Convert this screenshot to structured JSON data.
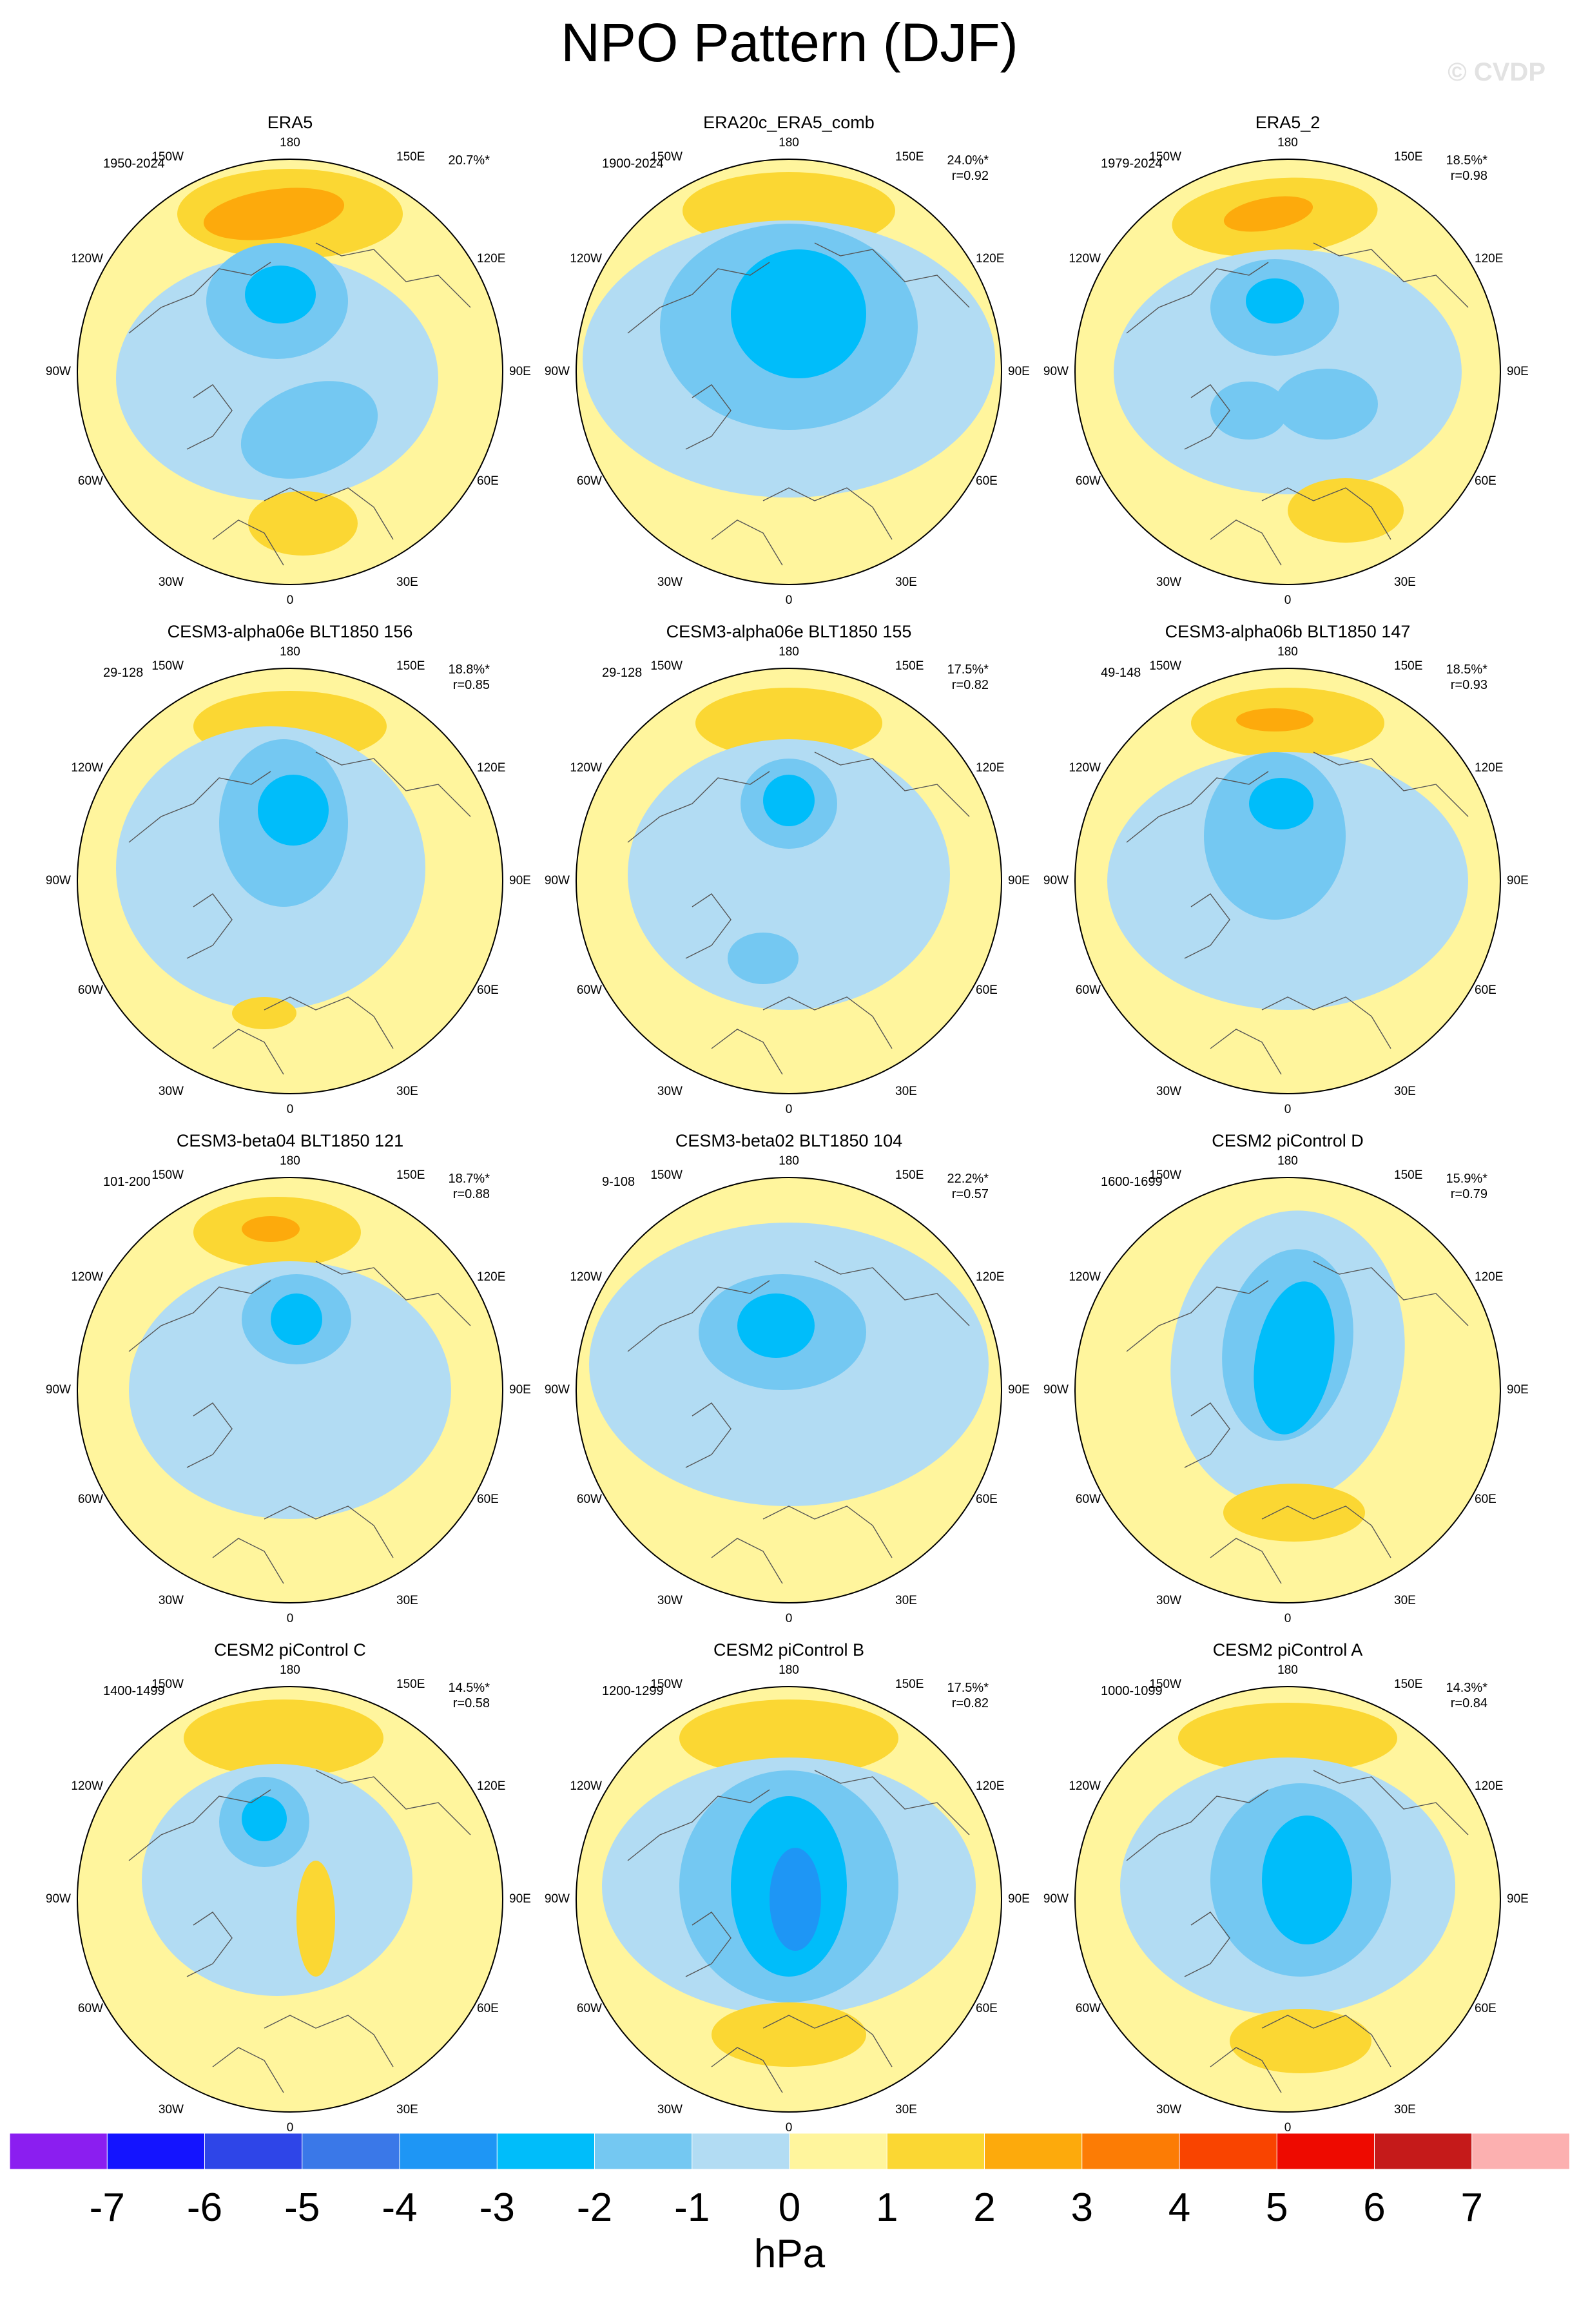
{
  "title": "NPO Pattern (DJF)",
  "watermark": "© CVDP",
  "units": "hPa",
  "colorbar": {
    "ticks": [
      "-7",
      "-6",
      "-5",
      "-4",
      "-3",
      "-2",
      "-1",
      "0",
      "1",
      "2",
      "3",
      "4",
      "5",
      "6",
      "7"
    ],
    "colors": [
      "#8b1ef0",
      "#1414ff",
      "#2e45e8",
      "#3a78e8",
      "#1e96f5",
      "#00bdfa",
      "#74c8f2",
      "#b2dcf3",
      "#fff59d",
      "#fbd733",
      "#fdaa0c",
      "#fc7c05",
      "#f94400",
      "#ee0a00",
      "#c51a1a",
      "#fcb0b0"
    ]
  },
  "map_labels": {
    "lon_180": "180",
    "lon_150w": "150W",
    "lon_150e": "150E",
    "lon_120w": "120W",
    "lon_120e": "120E",
    "lon_90w": "90W",
    "lon_90e": "90E",
    "lon_60w": "60W",
    "lon_60e": "60E",
    "lon_30w": "30W",
    "lon_30e": "30E",
    "lon_0": "0"
  },
  "panels": [
    {
      "title": "ERA5",
      "period": "1950-2024",
      "pct": "20.7%*",
      "r": ""
    },
    {
      "title": "ERA20c_ERA5_comb",
      "period": "1900-2024",
      "pct": "24.0%*",
      "r": "r=0.92"
    },
    {
      "title": "ERA5_2",
      "period": "1979-2024",
      "pct": "18.5%*",
      "r": "r=0.98"
    },
    {
      "title": "CESM3-alpha06e BLT1850 156",
      "period": "29-128",
      "pct": "18.8%*",
      "r": "r=0.85"
    },
    {
      "title": "CESM3-alpha06e BLT1850 155",
      "period": "29-128",
      "pct": "17.5%*",
      "r": "r=0.82"
    },
    {
      "title": "CESM3-alpha06b BLT1850 147",
      "period": "49-148",
      "pct": "18.5%*",
      "r": "r=0.93"
    },
    {
      "title": "CESM3-beta04 BLT1850 121",
      "period": "101-200",
      "pct": "18.7%*",
      "r": "r=0.88"
    },
    {
      "title": "CESM3-beta02 BLT1850 104",
      "period": "9-108",
      "pct": "22.2%*",
      "r": "r=0.57"
    },
    {
      "title": "CESM2 piControl D",
      "period": "1600-1699",
      "pct": "15.9%*",
      "r": "r=0.79"
    },
    {
      "title": "CESM2 piControl C",
      "period": "1400-1499",
      "pct": "14.5%*",
      "r": "r=0.58"
    },
    {
      "title": "CESM2 piControl B",
      "period": "1200-1299",
      "pct": "17.5%*",
      "r": "r=0.82"
    },
    {
      "title": "CESM2 piControl A",
      "period": "1000-1099",
      "pct": "14.3%*",
      "r": "r=0.84"
    }
  ]
}
